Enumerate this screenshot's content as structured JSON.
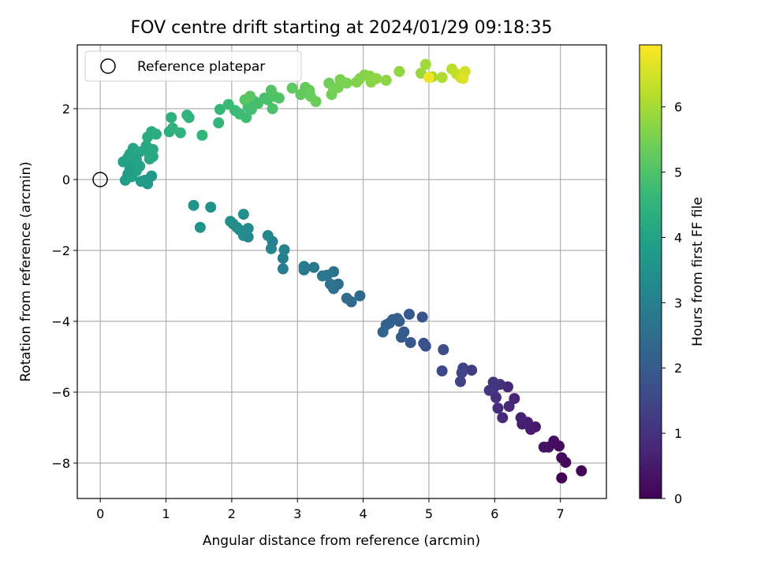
{
  "chart_data": {
    "type": "scatter",
    "title": "FOV centre drift starting at 2024/01/29 09:18:35",
    "xlabel": "Angular distance from reference (arcmin)",
    "ylabel": "Rotation from reference (arcmin)",
    "xlim": [
      -0.35,
      7.7
    ],
    "ylim": [
      -9.0,
      3.8
    ],
    "xticks": [
      0,
      1,
      2,
      3,
      4,
      5,
      6,
      7
    ],
    "yticks": [
      -8,
      -6,
      -4,
      -2,
      0,
      2
    ],
    "grid": true,
    "legend": {
      "placement": "top-left",
      "entries": [
        "Reference platepar"
      ]
    },
    "reference_point": {
      "x": 0,
      "y": 0,
      "label": "Reference platepar",
      "marker": "open-circle"
    },
    "colorbar": {
      "label": "Hours from first FF file",
      "colormap": "viridis",
      "range": [
        0,
        6.95
      ],
      "ticks": [
        0,
        1,
        2,
        3,
        4,
        5,
        6
      ]
    },
    "colormap_stops": [
      "#440154",
      "#482878",
      "#3e4989",
      "#31688e",
      "#26828e",
      "#1f9e89",
      "#35b779",
      "#6ece58",
      "#b5de2b",
      "#fde725"
    ],
    "points_columns": [
      "x",
      "y",
      "hours"
    ],
    "points": [
      [
        7.02,
        -8.42,
        0.0
      ],
      [
        7.32,
        -8.22,
        0.05
      ],
      [
        7.08,
        -7.98,
        0.1
      ],
      [
        7.02,
        -7.85,
        0.15
      ],
      [
        6.98,
        -7.52,
        0.2
      ],
      [
        6.9,
        -7.38,
        0.25
      ],
      [
        6.82,
        -7.55,
        0.3
      ],
      [
        6.75,
        -7.55,
        0.35
      ],
      [
        6.62,
        -6.98,
        0.45
      ],
      [
        6.55,
        -7.05,
        0.5
      ],
      [
        6.5,
        -6.85,
        0.55
      ],
      [
        6.42,
        -6.9,
        0.6
      ],
      [
        6.4,
        -6.72,
        0.65
      ],
      [
        6.3,
        -6.18,
        0.7
      ],
      [
        6.2,
        -5.85,
        0.75
      ],
      [
        6.22,
        -6.4,
        0.8
      ],
      [
        6.12,
        -6.72,
        0.85
      ],
      [
        6.05,
        -6.45,
        0.9
      ],
      [
        6.02,
        -6.15,
        0.95
      ],
      [
        6.08,
        -5.78,
        1.0
      ],
      [
        5.98,
        -5.72,
        1.05
      ],
      [
        5.92,
        -5.95,
        1.1
      ],
      [
        5.98,
        -5.9,
        1.15
      ],
      [
        5.65,
        -5.38,
        1.25
      ],
      [
        5.52,
        -5.32,
        1.35
      ],
      [
        5.48,
        -5.7,
        1.4
      ],
      [
        5.5,
        -5.45,
        1.45
      ],
      [
        5.2,
        -5.4,
        1.55
      ],
      [
        5.22,
        -4.8,
        1.65
      ],
      [
        4.95,
        -4.7,
        1.7
      ],
      [
        4.92,
        -4.62,
        1.75
      ],
      [
        4.9,
        -3.88,
        1.8
      ],
      [
        4.72,
        -4.6,
        1.9
      ],
      [
        4.7,
        -3.8,
        1.95
      ],
      [
        4.62,
        -4.3,
        2.0
      ],
      [
        4.58,
        -4.45,
        2.02
      ],
      [
        4.55,
        -4.0,
        2.05
      ],
      [
        4.52,
        -3.92,
        2.1
      ],
      [
        4.45,
        -3.95,
        2.12
      ],
      [
        4.4,
        -4.05,
        2.15
      ],
      [
        4.35,
        -4.1,
        2.2
      ],
      [
        4.3,
        -4.3,
        2.25
      ],
      [
        3.95,
        -3.28,
        2.35
      ],
      [
        3.82,
        -3.45,
        2.4
      ],
      [
        3.75,
        -3.35,
        2.45
      ],
      [
        3.62,
        -2.95,
        2.5
      ],
      [
        3.55,
        -3.08,
        2.55
      ],
      [
        3.5,
        -2.95,
        2.6
      ],
      [
        3.55,
        -2.6,
        2.65
      ],
      [
        3.45,
        -2.7,
        2.7
      ],
      [
        3.38,
        -2.72,
        2.75
      ],
      [
        3.25,
        -2.48,
        2.8
      ],
      [
        3.1,
        -2.55,
        2.85
      ],
      [
        3.1,
        -2.45,
        2.9
      ],
      [
        2.78,
        -2.52,
        2.95
      ],
      [
        2.78,
        -2.22,
        3.0
      ],
      [
        2.8,
        -1.98,
        3.05
      ],
      [
        2.62,
        -1.75,
        3.1
      ],
      [
        2.6,
        -1.95,
        3.15
      ],
      [
        2.55,
        -1.58,
        3.2
      ],
      [
        2.25,
        -1.62,
        3.25
      ],
      [
        2.22,
        -1.5,
        3.28
      ],
      [
        2.25,
        -1.38,
        3.3
      ],
      [
        2.18,
        -1.58,
        3.32
      ],
      [
        2.12,
        -1.42,
        3.35
      ],
      [
        2.08,
        -1.35,
        3.38
      ],
      [
        2.02,
        -1.25,
        3.4
      ],
      [
        1.98,
        -1.18,
        3.42
      ],
      [
        2.18,
        -0.98,
        3.45
      ],
      [
        1.68,
        -0.78,
        3.5
      ],
      [
        1.52,
        -1.35,
        3.55
      ],
      [
        1.42,
        -0.73,
        3.6
      ],
      [
        0.78,
        0.1,
        3.7
      ],
      [
        0.72,
        -0.12,
        3.72
      ],
      [
        0.68,
        -0.02,
        3.75
      ],
      [
        0.62,
        -0.05,
        3.78
      ],
      [
        0.38,
        -0.02,
        3.8
      ],
      [
        0.42,
        0.15,
        3.82
      ],
      [
        0.45,
        0.28,
        3.85
      ],
      [
        0.55,
        0.25,
        3.88
      ],
      [
        0.5,
        0.4,
        3.9
      ],
      [
        0.48,
        0.08,
        3.92
      ],
      [
        0.35,
        0.5,
        3.95
      ],
      [
        0.42,
        0.62,
        3.98
      ],
      [
        0.55,
        0.55,
        4.0
      ],
      [
        0.6,
        0.38,
        4.02
      ],
      [
        0.45,
        0.72,
        4.05
      ],
      [
        0.5,
        0.88,
        4.08
      ],
      [
        0.6,
        0.78,
        4.1
      ],
      [
        0.7,
        0.95,
        4.12
      ],
      [
        0.75,
        0.72,
        4.15
      ],
      [
        0.8,
        0.65,
        4.18
      ],
      [
        0.75,
        0.58,
        4.2
      ],
      [
        0.8,
        0.85,
        4.22
      ],
      [
        0.72,
        1.2,
        4.25
      ],
      [
        0.78,
        1.35,
        4.28
      ],
      [
        0.85,
        1.28,
        4.3
      ],
      [
        1.05,
        1.35,
        4.35
      ],
      [
        1.08,
        1.75,
        4.4
      ],
      [
        1.1,
        1.45,
        4.42
      ],
      [
        1.22,
        1.32,
        4.45
      ],
      [
        1.32,
        1.82,
        4.5
      ],
      [
        1.35,
        1.75,
        4.52
      ],
      [
        1.55,
        1.25,
        4.55
      ],
      [
        1.8,
        1.6,
        4.6
      ],
      [
        1.82,
        1.98,
        4.65
      ],
      [
        1.95,
        2.12,
        4.7
      ],
      [
        2.05,
        1.95,
        4.72
      ],
      [
        2.12,
        1.85,
        4.75
      ],
      [
        2.22,
        1.75,
        4.78
      ],
      [
        2.25,
        2.05,
        4.8
      ],
      [
        2.3,
        1.98,
        4.82
      ],
      [
        2.35,
        2.2,
        4.85
      ],
      [
        2.4,
        2.15,
        4.88
      ],
      [
        2.5,
        2.3,
        4.9
      ],
      [
        2.55,
        2.25,
        4.92
      ],
      [
        2.62,
        2.0,
        4.95
      ],
      [
        2.65,
        2.35,
        4.98
      ],
      [
        2.72,
        2.3,
        5.0
      ],
      [
        2.6,
        2.52,
        5.05
      ],
      [
        2.2,
        2.25,
        5.1
      ],
      [
        2.28,
        2.35,
        5.12
      ],
      [
        2.92,
        2.58,
        5.2
      ],
      [
        3.05,
        2.4,
        5.25
      ],
      [
        3.12,
        2.6,
        5.28
      ],
      [
        3.18,
        2.52,
        5.3
      ],
      [
        3.2,
        2.35,
        5.32
      ],
      [
        3.28,
        2.2,
        5.35
      ],
      [
        3.48,
        2.72,
        5.4
      ],
      [
        3.52,
        2.4,
        5.45
      ],
      [
        3.55,
        2.55,
        5.48
      ],
      [
        3.62,
        2.6,
        5.5
      ],
      [
        3.65,
        2.82,
        5.52
      ],
      [
        3.75,
        2.72,
        5.55
      ],
      [
        3.9,
        2.75,
        5.6
      ],
      [
        3.95,
        2.85,
        5.62
      ],
      [
        4.02,
        2.95,
        5.65
      ],
      [
        4.1,
        2.92,
        5.68
      ],
      [
        4.12,
        2.75,
        5.7
      ],
      [
        4.2,
        2.85,
        5.72
      ],
      [
        4.35,
        2.8,
        5.75
      ],
      [
        4.55,
        3.05,
        5.8
      ],
      [
        4.88,
        3.0,
        5.9
      ],
      [
        4.95,
        3.25,
        5.95
      ],
      [
        5.05,
        2.9,
        6.0
      ],
      [
        5.2,
        2.88,
        6.1
      ],
      [
        5.35,
        3.12,
        6.2
      ],
      [
        5.42,
        2.98,
        6.3
      ],
      [
        5.48,
        2.88,
        6.4
      ],
      [
        5.55,
        3.05,
        6.5
      ],
      [
        5.52,
        2.85,
        6.6
      ],
      [
        5.0,
        2.88,
        6.8
      ]
    ]
  }
}
